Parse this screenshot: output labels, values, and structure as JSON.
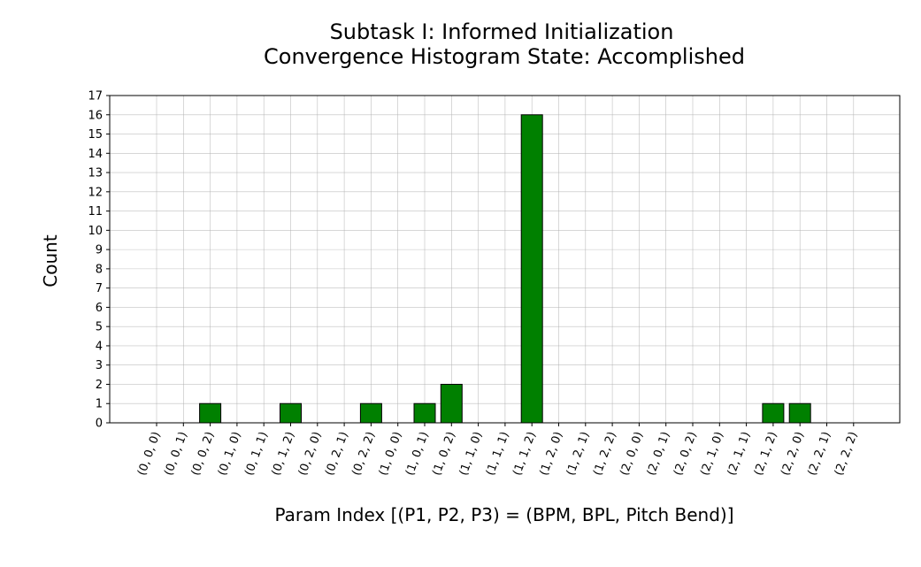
{
  "chart_data": {
    "type": "bar",
    "title_line1": "Subtask I: Informed Initialization",
    "title_line2": "Convergence Histogram State: Accomplished",
    "xlabel": "Param Index [(P1, P2, P3) = (BPM, BPL, Pitch Bend)]",
    "ylabel": "Count",
    "categories": [
      "(0, 0, 0)",
      "(0, 0, 1)",
      "(0, 0, 2)",
      "(0, 1, 0)",
      "(0, 1, 1)",
      "(0, 1, 2)",
      "(0, 2, 0)",
      "(0, 2, 1)",
      "(0, 2, 2)",
      "(1, 0, 0)",
      "(1, 0, 1)",
      "(1, 0, 2)",
      "(1, 1, 0)",
      "(1, 1, 1)",
      "(1, 1, 2)",
      "(1, 2, 0)",
      "(1, 2, 1)",
      "(1, 2, 2)",
      "(2, 0, 0)",
      "(2, 0, 1)",
      "(2, 0, 2)",
      "(2, 1, 0)",
      "(2, 1, 1)",
      "(2, 1, 2)",
      "(2, 2, 0)",
      "(2, 2, 1)",
      "(2, 2, 2)"
    ],
    "values": [
      0,
      0,
      1,
      0,
      0,
      1,
      0,
      0,
      1,
      0,
      1,
      2,
      0,
      0,
      16,
      0,
      0,
      0,
      0,
      0,
      0,
      0,
      0,
      1,
      1,
      0,
      0
    ],
    "ylim": [
      0,
      17
    ],
    "yticks": [
      0,
      1,
      2,
      3,
      4,
      5,
      6,
      7,
      8,
      9,
      10,
      11,
      12,
      13,
      14,
      15,
      16,
      17
    ],
    "bar_color": "#008000",
    "grid": true
  }
}
